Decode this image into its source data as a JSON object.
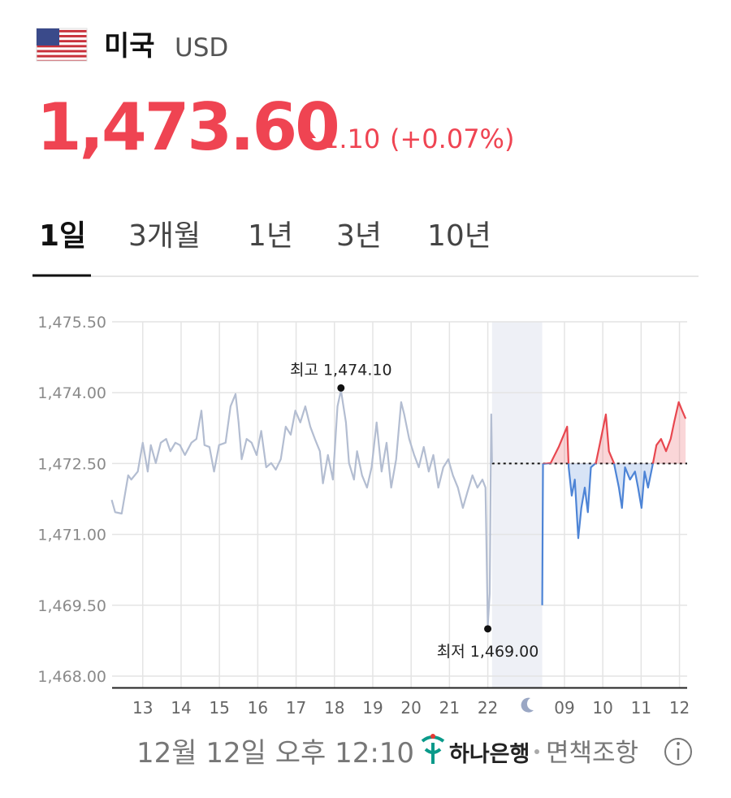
{
  "header": {
    "country": "미국",
    "currency": "USD",
    "price": "1,473.60",
    "change": "1.10",
    "change_percent": "(+0.07%)"
  },
  "tabs": [
    "1일",
    "3개월",
    "1년",
    "3년",
    "10년"
  ],
  "active_tab": 0,
  "chart_data": {
    "type": "line",
    "xlim": [
      12.2,
      27.2
    ],
    "ylim": [
      1467.75,
      1475.5
    ],
    "xticks": [
      13,
      14,
      15,
      16,
      17,
      18,
      19,
      20,
      21,
      22,
      {
        "value": 24,
        "label": "09"
      },
      {
        "value": 25,
        "label": "10"
      },
      {
        "value": 26,
        "label": "11"
      },
      {
        "value": 27,
        "label": "12"
      }
    ],
    "yticks": [
      {
        "value": 1468,
        "label": "1,468.00"
      },
      {
        "value": 1469.5,
        "label": "1,469.50"
      },
      {
        "value": 1471,
        "label": "1,471.00"
      },
      {
        "value": 1472.5,
        "label": "1,472.50"
      },
      {
        "value": 1474,
        "label": "1,474.00"
      },
      {
        "value": 1475.5,
        "label": "1,475.50"
      }
    ],
    "grid": true,
    "baseline": 1472.5,
    "shaded_range": [
      22.11,
      23.42
    ],
    "series": [
      {
        "color": "#b3bdd1",
        "x": [
          12.19,
          12.28,
          12.45,
          12.62,
          12.7,
          12.87,
          13.0,
          13.13,
          13.21,
          13.34,
          13.47,
          13.61,
          13.72,
          13.85,
          13.97,
          14.1,
          14.27,
          14.4,
          14.53,
          14.61,
          14.74,
          14.86,
          14.99,
          15.16,
          15.29,
          15.42,
          15.5,
          15.58,
          15.71,
          15.84,
          15.97,
          16.09,
          16.22,
          16.35,
          16.47,
          16.6,
          16.73,
          16.86,
          16.98,
          17.11,
          17.24,
          17.37,
          17.49,
          17.62,
          17.7,
          17.83,
          17.96,
          18.08,
          18.17,
          18.3,
          18.38,
          18.51,
          18.59,
          18.72,
          18.85,
          18.97,
          19.1,
          19.23,
          19.36,
          19.48,
          19.61,
          19.74,
          19.82,
          19.95,
          20.08,
          20.2,
          20.33,
          20.46,
          20.58,
          20.71,
          20.84,
          20.97,
          21.09,
          21.22,
          21.35,
          21.47,
          21.6,
          21.73,
          21.86,
          21.94,
          22.0,
          22.05,
          22.09,
          22.11
        ],
        "values": [
          1471.73,
          1471.47,
          1471.44,
          1472.25,
          1472.16,
          1472.33,
          1472.94,
          1472.33,
          1472.89,
          1472.51,
          1472.94,
          1473.02,
          1472.76,
          1472.94,
          1472.89,
          1472.68,
          1472.94,
          1473.02,
          1473.62,
          1472.89,
          1472.85,
          1472.33,
          1472.89,
          1472.94,
          1473.71,
          1473.97,
          1473.37,
          1472.59,
          1473.02,
          1472.94,
          1472.68,
          1473.19,
          1472.42,
          1472.51,
          1472.37,
          1472.59,
          1473.28,
          1473.11,
          1473.62,
          1473.37,
          1473.71,
          1473.28,
          1473.02,
          1472.76,
          1472.08,
          1472.68,
          1472.16,
          1473.71,
          1474.05,
          1473.37,
          1472.51,
          1472.16,
          1472.76,
          1472.25,
          1471.99,
          1472.42,
          1473.37,
          1472.33,
          1472.94,
          1471.99,
          1472.59,
          1473.8,
          1473.54,
          1473.02,
          1472.68,
          1472.42,
          1472.85,
          1472.33,
          1472.68,
          1471.99,
          1472.42,
          1472.59,
          1472.25,
          1471.99,
          1471.56,
          1471.9,
          1472.25,
          1471.99,
          1472.16,
          1471.99,
          1469.07,
          1469.75,
          1473.54,
          1472.51
        ]
      },
      {
        "color_above": "#e8474f",
        "color_below": "#4d84d6",
        "x": [
          23.42,
          23.44,
          23.64,
          23.85,
          24.07,
          24.11,
          24.19,
          24.27,
          24.36,
          24.44,
          24.53,
          24.61,
          24.69,
          24.82,
          24.95,
          25.08,
          25.16,
          25.29,
          25.42,
          25.5,
          25.58,
          25.71,
          25.84,
          25.92,
          26.01,
          26.09,
          26.18,
          26.31,
          26.4,
          26.52,
          26.65,
          26.77,
          26.86,
          26.98,
          27.07,
          27.16
        ],
        "values": [
          1469.5,
          1472.49,
          1472.51,
          1472.85,
          1473.28,
          1472.42,
          1471.82,
          1472.16,
          1470.92,
          1471.56,
          1471.99,
          1471.47,
          1472.42,
          1472.51,
          1473.02,
          1473.54,
          1472.76,
          1472.51,
          1471.99,
          1471.56,
          1472.42,
          1472.16,
          1472.33,
          1471.99,
          1471.56,
          1472.33,
          1471.99,
          1472.51,
          1472.89,
          1473.02,
          1472.76,
          1473.02,
          1473.37,
          1473.8,
          1473.62,
          1473.45
        ]
      }
    ],
    "annotations": [
      {
        "label": "최고 1,474.10",
        "x": 18.17,
        "y": 1474.1,
        "position": "above"
      },
      {
        "label": "최저 1,469.00",
        "x": 22.0,
        "y": 1469.0,
        "position": "below"
      }
    ]
  },
  "footer": {
    "timestamp": "12월 12일 오후 12:10",
    "bank": "하나은행",
    "disclaimer": "면책조항"
  }
}
